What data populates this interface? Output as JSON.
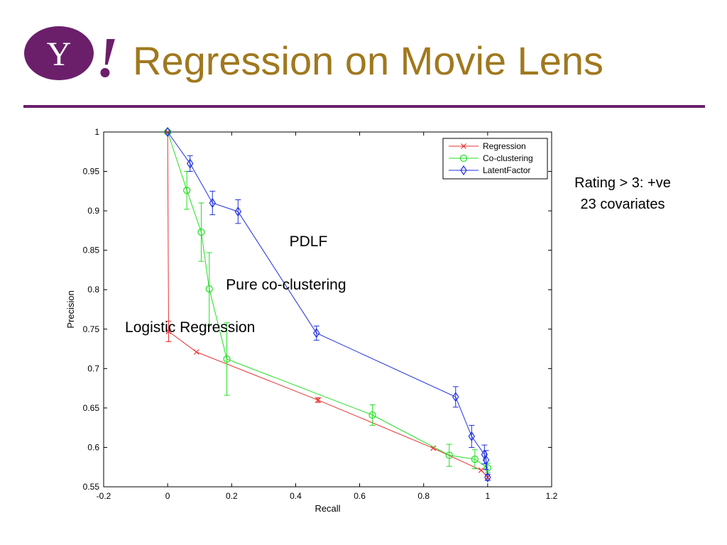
{
  "slide": {
    "title": "Regression on Movie Lens",
    "logo_text": "Y!",
    "note_lines": [
      "Rating > 3: +ve",
      "23 covariates"
    ]
  },
  "colors": {
    "title": "#a0781e",
    "rule": "#6b1f6b",
    "logo": "#6b1f6b"
  },
  "chart_data": {
    "type": "line",
    "title": "",
    "xlabel": "Recall",
    "ylabel": "Precision",
    "xlim": [
      -0.2,
      1.2
    ],
    "ylim": [
      0.55,
      1.0
    ],
    "xticks": [
      -0.2,
      0,
      0.2,
      0.4,
      0.6,
      0.8,
      1,
      1.2
    ],
    "xtick_labels": [
      "-0.2",
      "0",
      "0.2",
      "0.4",
      "0.6",
      "0.8",
      "1",
      "1.2"
    ],
    "yticks": [
      0.55,
      0.6,
      0.65,
      0.7,
      0.75,
      0.8,
      0.85,
      0.9,
      0.95,
      1
    ],
    "ytick_labels": [
      "0.55",
      "0.6",
      "0.65",
      "0.7",
      "0.75",
      "0.8",
      "0.85",
      "0.9",
      "0.95",
      "1"
    ],
    "grid": false,
    "legend": "top-right",
    "series": [
      {
        "name": "Regression",
        "color": "#e83030",
        "marker": "x",
        "points": [
          [
            0.0,
            1.0
          ],
          [
            0.003,
            0.747
          ],
          [
            0.09,
            0.721
          ],
          [
            0.47,
            0.66
          ],
          [
            0.83,
            0.599
          ],
          [
            0.98,
            0.571
          ],
          [
            1.0,
            0.562
          ]
        ],
        "err": [
          0,
          0.013,
          0,
          0.003,
          0,
          0,
          0
        ]
      },
      {
        "name": "Co-clustering",
        "color": "#20e020",
        "marker": "o",
        "points": [
          [
            0.0,
            1.0
          ],
          [
            0.06,
            0.926
          ],
          [
            0.105,
            0.873
          ],
          [
            0.13,
            0.801
          ],
          [
            0.185,
            0.712
          ],
          [
            0.64,
            0.641
          ],
          [
            0.88,
            0.59
          ],
          [
            0.96,
            0.585
          ],
          [
            1.0,
            0.574
          ]
        ],
        "err": [
          0,
          0.024,
          0.037,
          0.046,
          0.046,
          0.013,
          0.014,
          0.012,
          0.006
        ]
      },
      {
        "name": "LatentFactor",
        "color": "#2030e0",
        "marker": "diamond",
        "points": [
          [
            0.0,
            1.0
          ],
          [
            0.07,
            0.96
          ],
          [
            0.14,
            0.91
          ],
          [
            0.22,
            0.899
          ],
          [
            0.465,
            0.745
          ],
          [
            0.9,
            0.664
          ],
          [
            0.95,
            0.614
          ],
          [
            0.99,
            0.591
          ],
          [
            0.995,
            0.584
          ],
          [
            1.0,
            0.562
          ]
        ],
        "err": [
          0,
          0.01,
          0.015,
          0.015,
          0.009,
          0.013,
          0.014,
          0.012,
          0.012,
          0.004
        ]
      }
    ],
    "annotations": [
      {
        "text": "PDLF",
        "x": 0.44,
        "y": 0.855
      },
      {
        "text": "Pure co-clustering",
        "x": 0.37,
        "y": 0.8
      },
      {
        "text": "Logistic Regression",
        "x": 0.07,
        "y": 0.746
      }
    ]
  }
}
